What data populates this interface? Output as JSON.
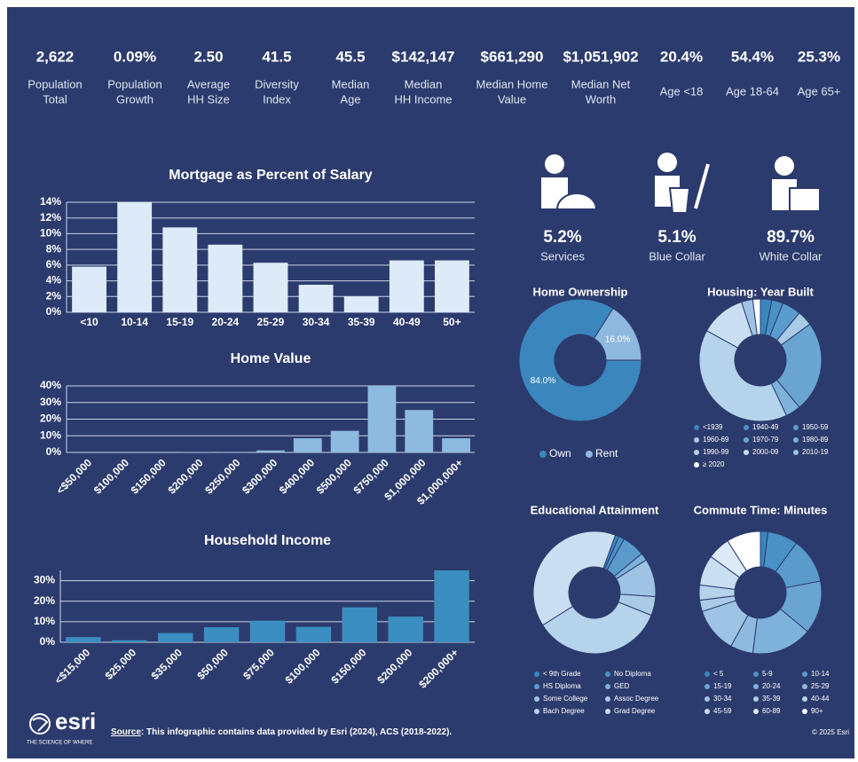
{
  "stats": [
    {
      "value": "2,622",
      "label": [
        "Population",
        "Total"
      ]
    },
    {
      "value": "0.09%",
      "label": [
        "Population",
        "Growth"
      ]
    },
    {
      "value": "2.50",
      "label": [
        "Average",
        "HH Size"
      ]
    },
    {
      "value": "41.5",
      "label": [
        "Diversity",
        "Index"
      ]
    },
    {
      "value": "45.5",
      "label": [
        "Median",
        "Age"
      ]
    },
    {
      "value": "$142,147",
      "label": [
        "Median",
        "HH Income"
      ]
    },
    {
      "value": "$661,290",
      "label": [
        "Median Home",
        "Value"
      ]
    },
    {
      "value": "$1,051,902",
      "label": [
        "Median Net",
        "Worth"
      ]
    },
    {
      "value": "20.4%",
      "label": [
        "Age <18"
      ]
    },
    {
      "value": "54.4%",
      "label": [
        "Age 18-64"
      ]
    },
    {
      "value": "25.3%",
      "label": [
        "Age 65+"
      ]
    }
  ],
  "occupations": [
    {
      "value": "5.2%",
      "label": "Services"
    },
    {
      "value": "5.1%",
      "label": "Blue Collar"
    },
    {
      "value": "89.7%",
      "label": "White Collar"
    }
  ],
  "chart_data": [
    {
      "type": "bar",
      "title": "Mortgage as Percent of Salary",
      "categories": [
        "<10",
        "10-14",
        "15-19",
        "20-24",
        "25-29",
        "30-34",
        "35-39",
        "40-49",
        "50+"
      ],
      "values": [
        5.8,
        14,
        10.8,
        8.6,
        6.3,
        3.5,
        2.0,
        6.6,
        6.6
      ],
      "color": "#dcebf7",
      "ylim": [
        0,
        14
      ],
      "yticks": [
        {
          "value": 0,
          "label": "0%"
        },
        {
          "value": 2,
          "label": "2%"
        },
        {
          "value": 4,
          "label": "4%"
        },
        {
          "value": 6,
          "label": "6%"
        },
        {
          "value": 8,
          "label": "8%"
        },
        {
          "value": 10,
          "label": "10%"
        },
        {
          "value": 12,
          "label": "12%"
        },
        {
          "value": 14,
          "label": "14%"
        }
      ],
      "grid": true
    },
    {
      "type": "bar",
      "title": "Home Value",
      "categories": [
        "<$50,000",
        "$100,000",
        "$150,000",
        "$200,000",
        "$250,000",
        "$300,000",
        "$400,000",
        "$500,000",
        "$750,000",
        "$1,000,000",
        "$1,000,000+"
      ],
      "values": [
        0,
        0,
        0,
        0.2,
        0.3,
        1.2,
        8.5,
        13,
        40,
        25.5,
        8.5
      ],
      "color": "#8fbadf",
      "ylim": [
        0,
        40
      ],
      "yticks": [
        {
          "value": 0,
          "label": "0%"
        },
        {
          "value": 10,
          "label": "10%"
        },
        {
          "value": 20,
          "label": "20%"
        },
        {
          "value": 30,
          "label": "30%"
        },
        {
          "value": 40,
          "label": "40%"
        }
      ],
      "grid": true
    },
    {
      "type": "bar",
      "title": "Household Income",
      "categories": [
        "<$15,000",
        "$25,000",
        "$35,000",
        "$50,000",
        "$75,000",
        "$100,000",
        "$150,000",
        "$200,000",
        "$200,000+"
      ],
      "values": [
        2.5,
        1,
        4.5,
        7.3,
        10.5,
        7.5,
        17,
        12.5,
        35
      ],
      "color": "#3a8ec0",
      "ylim": [
        0,
        35
      ],
      "yticks": [
        {
          "value": 0,
          "label": "0%"
        },
        {
          "value": 10,
          "label": "10%"
        },
        {
          "value": 20,
          "label": "20%"
        },
        {
          "value": 30,
          "label": "30%"
        }
      ],
      "grid": true
    },
    {
      "type": "donut",
      "title": "Home Ownership",
      "categories": [
        "Own",
        "Rent"
      ],
      "values": [
        84.0,
        16.0
      ],
      "value_labels": [
        "84.0%",
        "16.0%"
      ],
      "colors": [
        "#3a86bd",
        "#8fb8de"
      ]
    },
    {
      "type": "donut",
      "title": "Housing: Year Built",
      "categories": [
        "<1939",
        "1940-49",
        "1950-59",
        "1960-69",
        "1970-79",
        "1980-89",
        "1990-99",
        "2000-09",
        "2010-19",
        "≥ 2020"
      ],
      "values": [
        3,
        3,
        5,
        4,
        24,
        4,
        40,
        12,
        3,
        2
      ],
      "colors": [
        "#3a86bd",
        "#4a91c6",
        "#5a9ccd",
        "#a9cbe8",
        "#6aa5d2",
        "#7fb2da",
        "#b6d3ec",
        "#c9def1",
        "#9ec3e4",
        "#ffffff"
      ]
    },
    {
      "type": "donut",
      "title": "Educational Attainment",
      "categories": [
        "< 9th Grade",
        "No Diploma",
        "HS Diploma",
        "GED",
        "Some College",
        "Assoc Degree",
        "Bach Degree",
        "Grad Degree"
      ],
      "values": [
        1,
        1.5,
        6,
        2,
        10,
        5,
        35,
        39.5
      ],
      "colors": [
        "#3a86bd",
        "#4a91c6",
        "#5b9bcb",
        "#7fb2da",
        "#9ec3e4",
        "#a9cbe8",
        "#b6d3ec",
        "#c9def1"
      ]
    },
    {
      "type": "donut",
      "title": "Commute Time: Minutes",
      "categories": [
        "< 5",
        "5-9",
        "10-14",
        "15-19",
        "20-24",
        "25-29",
        "30-34",
        "35-39",
        "40-44",
        "45-59",
        "60-89",
        "90+"
      ],
      "values": [
        2,
        8,
        12,
        14,
        16,
        6,
        12,
        3,
        4,
        8,
        6,
        9
      ],
      "colors": [
        "#3a86bd",
        "#4a91c6",
        "#5b9bcb",
        "#6aa5d2",
        "#7fb2da",
        "#8fbadf",
        "#9ec3e4",
        "#a9cbe8",
        "#b6d3ec",
        "#c9def1",
        "#dcebf7",
        "#ffffff"
      ]
    }
  ],
  "footer": {
    "logo": "esri",
    "tagline": "THE SCIENCE OF WHERE",
    "source_label": "Source",
    "source_text": ": This infographic contains data provided by Esri (2024), ACS (2018-2022).",
    "copyright": "© 2025 Esri"
  }
}
